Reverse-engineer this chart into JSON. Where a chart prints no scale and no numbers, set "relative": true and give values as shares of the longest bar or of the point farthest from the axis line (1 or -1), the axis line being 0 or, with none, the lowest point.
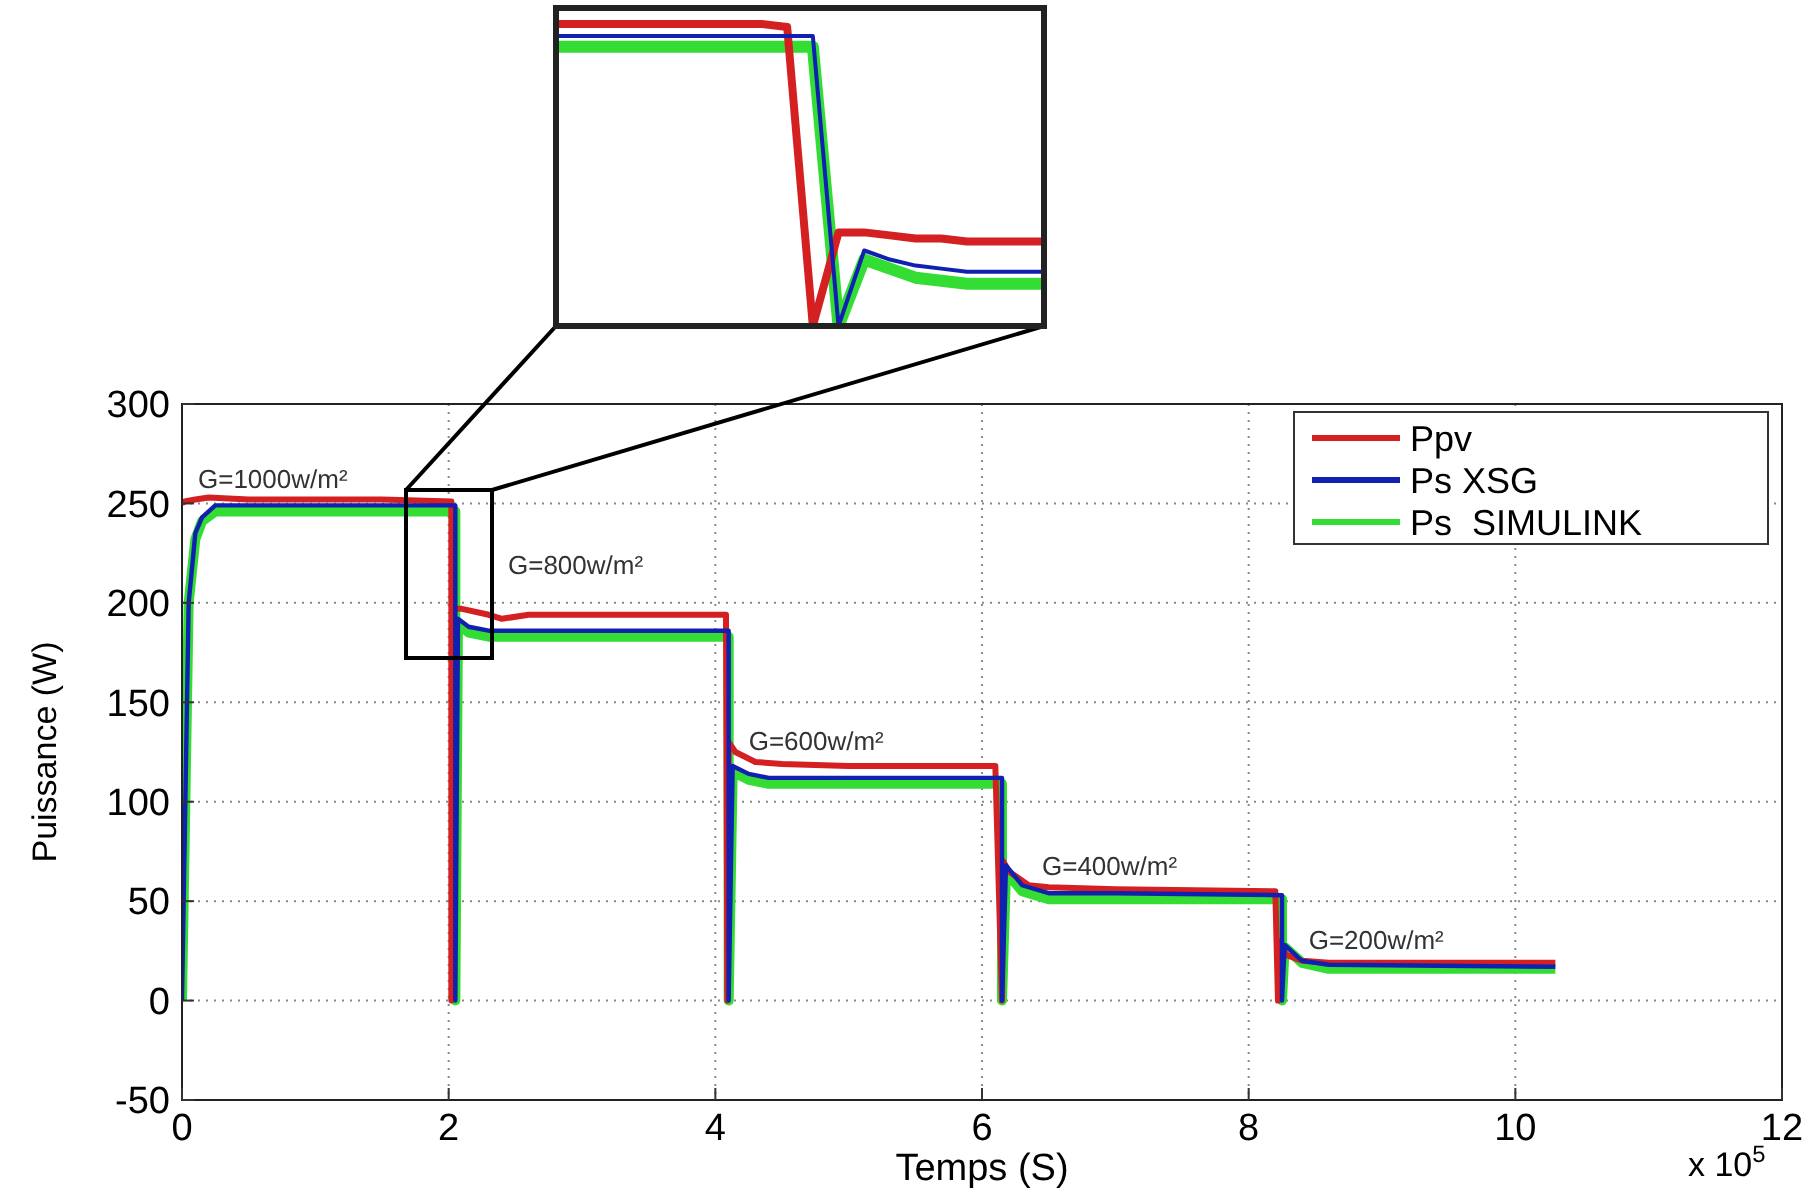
{
  "chart_data": [
    {
      "type": "line",
      "xlabel": "Temps (S)",
      "ylabel": "Puissance (W)",
      "xlim": [
        0,
        12
      ],
      "xticks": [
        0,
        2,
        4,
        6,
        8,
        10,
        12
      ],
      "ylim": [
        -50,
        300
      ],
      "yticks": [
        -50,
        0,
        50,
        100,
        150,
        200,
        250,
        300
      ],
      "grid": true,
      "legend": "top right",
      "line_style": "solid",
      "series": [
        {
          "name": "Ppv",
          "color": "#d42020",
          "x": [
            0,
            0.02,
            0.1,
            0.2,
            0.5,
            1,
            1.5,
            2.02,
            2.02,
            2.03,
            2.1,
            2.3,
            2.4,
            2.6,
            3,
            4.08,
            4.09,
            4.1,
            4.15,
            4.3,
            4.5,
            5,
            6.1,
            6.15,
            6.16,
            6.2,
            6.35,
            6.5,
            7,
            8.2,
            8.22,
            8.23,
            8.28,
            8.4,
            8.6,
            9,
            10.3
          ],
          "values": [
            250,
            251,
            252,
            253,
            252,
            252,
            252,
            251,
            0,
            197,
            197,
            194,
            192,
            194,
            194,
            194,
            0,
            130,
            125,
            120,
            119,
            118,
            118,
            0,
            70,
            65,
            58,
            57,
            56,
            55,
            0,
            30,
            23,
            20,
            19,
            19,
            19
          ]
        },
        {
          "name": "Ps XSG",
          "color": "#1020b0",
          "x": [
            0,
            0.05,
            0.1,
            0.15,
            0.25,
            1,
            2.05,
            2.05,
            2.07,
            2.15,
            2.3,
            3,
            4.1,
            4.1,
            4.13,
            4.25,
            4.4,
            5,
            6.15,
            6.15,
            6.18,
            6.3,
            6.5,
            7,
            8.25,
            8.25,
            8.27,
            8.4,
            8.6,
            10.3
          ],
          "values": [
            0,
            200,
            235,
            243,
            249,
            249,
            249,
            0,
            192,
            188,
            186,
            186,
            186,
            0,
            118,
            114,
            112,
            112,
            112,
            0,
            68,
            58,
            54,
            54,
            53,
            0,
            28,
            20,
            18,
            17
          ]
        },
        {
          "name": "Ps  SIMULINK",
          "color": "#33dd33",
          "x": [
            0,
            0.05,
            0.1,
            0.15,
            0.25,
            1,
            2.05,
            2.05,
            2.07,
            2.15,
            2.3,
            3,
            4.1,
            4.1,
            4.13,
            4.25,
            4.4,
            5,
            6.15,
            6.15,
            6.18,
            6.3,
            6.5,
            7,
            8.25,
            8.25,
            8.27,
            8.4,
            8.6,
            10.3
          ],
          "values": [
            0,
            200,
            232,
            241,
            246,
            246,
            246,
            0,
            190,
            185,
            183,
            183,
            183,
            0,
            115,
            111,
            109,
            109,
            109,
            0,
            65,
            55,
            51,
            51,
            51,
            0,
            27,
            19,
            16,
            16
          ]
        }
      ],
      "annotations": [
        {
          "text": "G=1000w/m²",
          "x": 0.12,
          "y": 258
        },
        "G=800w/m²",
        {
          "text": "G=600w/m²",
          "x": 4.25,
          "y": 126
        },
        {
          "text": "G=400w/m²",
          "x": 6.45,
          "y": 63
        },
        {
          "text": "G=200w/m²",
          "x": 8.45,
          "y": 26
        },
        "x 10$^{5}$"
      ]
    },
    {
      "type": "line",
      "relative": true,
      "line_style": "solid",
      "categories": [
        null,
        null,
        null,
        null,
        null,
        null,
        null,
        null,
        null,
        null,
        null,
        null,
        null,
        null,
        null,
        null,
        null,
        null,
        null,
        null
      ],
      "series": [
        {
          "color": "#d42020",
          "values": [
            1,
            1,
            1,
            1,
            1,
            1,
            1,
            1,
            1,
            0.99,
            0,
            0.31,
            0.31,
            0.3,
            0.29,
            0.29,
            0.28,
            0.28,
            0.28,
            0.28
          ]
        },
        {
          "color": "#1020b0",
          "values": [
            0.96,
            0.96,
            0.96,
            0.96,
            0.96,
            0.96,
            0.96,
            0.96,
            0.96,
            0.96,
            0.96,
            0,
            0.25,
            0.22,
            0.2,
            0.19,
            0.18,
            0.18,
            0.18,
            0.18
          ]
        },
        {
          "color": "#33dd33",
          "values": [
            0.925,
            0.925,
            0.925,
            0.925,
            0.925,
            0.925,
            0.925,
            0.925,
            0.925,
            0.925,
            0.925,
            0,
            0.22,
            0.19,
            0.16,
            0.15,
            0.14,
            0.14,
            0.14,
            0.14
          ]
        }
      ]
    }
  ]
}
